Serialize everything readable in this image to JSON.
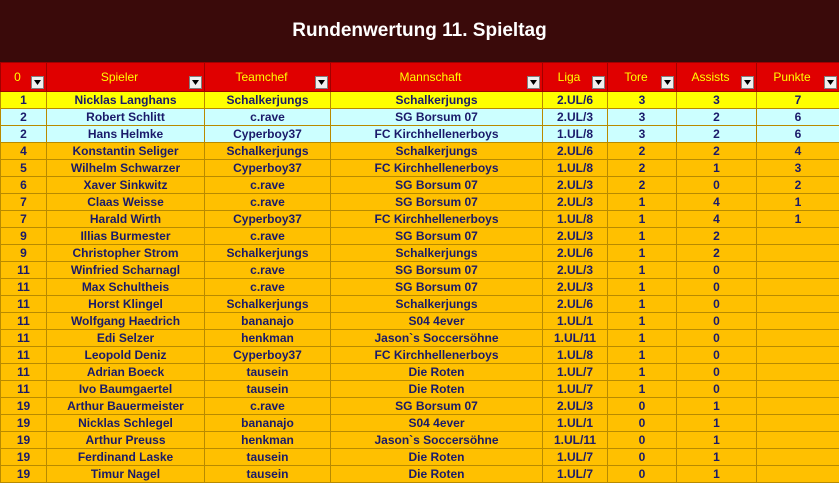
{
  "title": "Rundenwertung 11. Spieltag",
  "colors": {
    "header_bg": "#e00000",
    "header_text": "#ffff00",
    "title_bg": "#3a0a0a",
    "row_first": "#ffff00",
    "row_2_3": "#ccffff",
    "row_rest": "#ffc000",
    "text": "#1a1a6a"
  },
  "headers": [
    "0",
    "Spieler",
    "Teamchef",
    "Mannschaft",
    "Liga",
    "Tore",
    "Assists",
    "Punkte"
  ],
  "rows": [
    [
      "1",
      "Nicklas Langhans",
      "Schalkerjungs",
      "Schalkerjungs",
      "2.UL/6",
      "3",
      "3",
      "7"
    ],
    [
      "2",
      "Robert Schlitt",
      "c.rave",
      "SG Borsum 07",
      "2.UL/3",
      "3",
      "2",
      "6"
    ],
    [
      "2",
      "Hans Helmke",
      "Cyperboy37",
      "FC Kirchhellenerboys",
      "1.UL/8",
      "3",
      "2",
      "6"
    ],
    [
      "4",
      "Konstantin Seliger",
      "Schalkerjungs",
      "Schalkerjungs",
      "2.UL/6",
      "2",
      "2",
      "4"
    ],
    [
      "5",
      "Wilhelm Schwarzer",
      "Cyperboy37",
      "FC Kirchhellenerboys",
      "1.UL/8",
      "2",
      "1",
      "3"
    ],
    [
      "6",
      "Xaver Sinkwitz",
      "c.rave",
      "SG Borsum 07",
      "2.UL/3",
      "2",
      "0",
      "2"
    ],
    [
      "7",
      "Claas Weisse",
      "c.rave",
      "SG Borsum 07",
      "2.UL/3",
      "1",
      "4",
      "1"
    ],
    [
      "7",
      "Harald Wirth",
      "Cyperboy37",
      "FC Kirchhellenerboys",
      "1.UL/8",
      "1",
      "4",
      "1"
    ],
    [
      "9",
      "Illias Burmester",
      "c.rave",
      "SG Borsum 07",
      "2.UL/3",
      "1",
      "2",
      ""
    ],
    [
      "9",
      "Christopher Strom",
      "Schalkerjungs",
      "Schalkerjungs",
      "2.UL/6",
      "1",
      "2",
      ""
    ],
    [
      "11",
      "Winfried Scharnagl",
      "c.rave",
      "SG Borsum 07",
      "2.UL/3",
      "1",
      "0",
      ""
    ],
    [
      "11",
      "Max Schultheis",
      "c.rave",
      "SG Borsum 07",
      "2.UL/3",
      "1",
      "0",
      ""
    ],
    [
      "11",
      "Horst Klingel",
      "Schalkerjungs",
      "Schalkerjungs",
      "2.UL/6",
      "1",
      "0",
      ""
    ],
    [
      "11",
      "Wolfgang Haedrich",
      "bananajo",
      "S04 4ever",
      "1.UL/1",
      "1",
      "0",
      ""
    ],
    [
      "11",
      "Edi Selzer",
      "henkman",
      "Jason`s Soccersöhne",
      "1.UL/11",
      "1",
      "0",
      ""
    ],
    [
      "11",
      "Leopold Deniz",
      "Cyperboy37",
      "FC Kirchhellenerboys",
      "1.UL/8",
      "1",
      "0",
      ""
    ],
    [
      "11",
      "Adrian Boeck",
      "tausein",
      "Die Roten",
      "1.UL/7",
      "1",
      "0",
      ""
    ],
    [
      "11",
      "Ivo Baumgaertel",
      "tausein",
      "Die Roten",
      "1.UL/7",
      "1",
      "0",
      ""
    ],
    [
      "19",
      "Arthur Bauermeister",
      "c.rave",
      "SG Borsum 07",
      "2.UL/3",
      "0",
      "1",
      ""
    ],
    [
      "19",
      "Nicklas Schlegel",
      "bananajo",
      "S04 4ever",
      "1.UL/1",
      "0",
      "1",
      ""
    ],
    [
      "19",
      "Arthur Preuss",
      "henkman",
      "Jason`s Soccersöhne",
      "1.UL/11",
      "0",
      "1",
      ""
    ],
    [
      "19",
      "Ferdinand Laske",
      "tausein",
      "Die Roten",
      "1.UL/7",
      "0",
      "1",
      ""
    ],
    [
      "19",
      "Timur Nagel",
      "tausein",
      "Die Roten",
      "1.UL/7",
      "0",
      "1",
      ""
    ]
  ]
}
